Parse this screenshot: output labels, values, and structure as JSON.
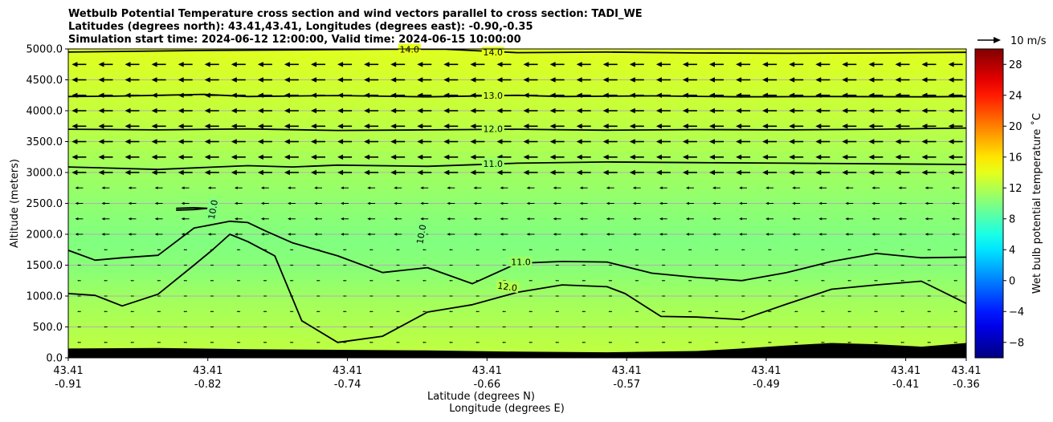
{
  "chart_data": {
    "type": "heatmap",
    "title_lines": [
      "Wetbulb Potential Temperature cross section and wind vectors parallel to cross section: TADI_WE",
      "Latitudes (degrees north): 43.41,43.41, Longitudes (degrees east): -0.90,-0.35",
      "Simulation start time: 2024-06-12 12:00:00, Valid time: 2024-06-15 10:00:00"
    ],
    "ylabel": "Altitude (meters)",
    "xlabel_lat": "Latitude (degrees N)",
    "xlabel_lon": "Longitude (degrees E)",
    "ylim": [
      0,
      5000
    ],
    "yticks": [
      "0.0",
      "500.0",
      "1000.0",
      "1500.0",
      "2000.0",
      "2500.0",
      "3000.0",
      "3500.0",
      "4000.0",
      "4500.0",
      "5000.0"
    ],
    "ytick_values": [
      0,
      500,
      1000,
      1500,
      2000,
      2500,
      3000,
      3500,
      4000,
      4500,
      5000
    ],
    "xticks_lat": [
      "43.41",
      "43.41",
      "43.41",
      "43.41",
      "43.41",
      "43.41",
      "43.41",
      "43.41"
    ],
    "xticks_lon": [
      "-0.91",
      "-0.82",
      "-0.74",
      "-0.66",
      "-0.57",
      "-0.49",
      "-0.41",
      "-0.36"
    ],
    "xtick_fraction": [
      0,
      0.1554,
      0.3109,
      0.4663,
      0.6218,
      0.7772,
      0.9326,
      1.0
    ],
    "grid": "horizontal",
    "colorbar": {
      "label": "Wet bulb potential temperature ˚C",
      "range": [
        -10,
        30
      ],
      "ticks": [
        "−8",
        "−4",
        "0",
        "4",
        "8",
        "12",
        "16",
        "20",
        "24",
        "28"
      ],
      "tick_values": [
        -8,
        -4,
        0,
        4,
        8,
        12,
        16,
        20,
        24,
        28
      ],
      "colormap": "jet"
    },
    "quiver_key": "10 m/s",
    "contour_labels": [
      {
        "text": "14.0",
        "level": 14,
        "x": 0.473,
        "alt": 4945,
        "rot": 0
      },
      {
        "text": "14.0",
        "level": 14,
        "x": 0.38,
        "alt": 4995,
        "rot": 0
      },
      {
        "text": "13.0",
        "level": 13,
        "x": 0.473,
        "alt": 4245,
        "rot": 0
      },
      {
        "text": "12.0",
        "level": 12,
        "x": 0.473,
        "alt": 3705,
        "rot": 0
      },
      {
        "text": "11.0",
        "level": 11,
        "x": 0.473,
        "alt": 3145,
        "rot": 0
      },
      {
        "text": "11.0",
        "level": 11,
        "x": 0.504,
        "alt": 1555,
        "rot": 0
      },
      {
        "text": "12.0",
        "level": 12,
        "x": 0.489,
        "alt": 1150,
        "rot": 8
      },
      {
        "text": "10.0",
        "level": 10,
        "x": 0.393,
        "alt": 2000,
        "rot": -80
      },
      {
        "text": "10.0",
        "level": 10,
        "x": 0.161,
        "alt": 2400,
        "rot": -80
      }
    ],
    "contours": [
      {
        "level": 14,
        "x": [
          0,
          0.06,
          0.15,
          0.25,
          0.35,
          0.42,
          0.5,
          0.6,
          0.7,
          0.8,
          0.9,
          1.0
        ],
        "alt": [
          4950,
          4960,
          4975,
          4985,
          4995,
          4995,
          4940,
          4950,
          4935,
          4930,
          4935,
          4945
        ]
      },
      {
        "level": 13,
        "x": [
          0,
          0.05,
          0.1,
          0.15,
          0.2,
          0.3,
          0.4,
          0.5,
          0.55,
          0.65,
          0.75,
          0.85,
          0.95,
          1.0
        ],
        "alt": [
          4230,
          4235,
          4250,
          4265,
          4230,
          4245,
          4225,
          4250,
          4230,
          4240,
          4225,
          4230,
          4225,
          4230
        ]
      },
      {
        "level": 12,
        "x": [
          0,
          0.1,
          0.2,
          0.3,
          0.4,
          0.5,
          0.6,
          0.7,
          0.8,
          0.9,
          1.0
        ],
        "alt": [
          3700,
          3690,
          3705,
          3680,
          3690,
          3700,
          3685,
          3695,
          3690,
          3700,
          3720
        ]
      },
      {
        "level": 11,
        "x": [
          0,
          0.05,
          0.1,
          0.15,
          0.2,
          0.25,
          0.3,
          0.4,
          0.5,
          0.6,
          0.7,
          0.8,
          0.9,
          1.0
        ],
        "alt": [
          3090,
          3070,
          3050,
          3080,
          3110,
          3090,
          3120,
          3100,
          3150,
          3170,
          3160,
          3150,
          3140,
          3130
        ]
      },
      {
        "level": 11,
        "x": [
          0,
          0.03,
          0.06,
          0.1,
          0.14,
          0.18,
          0.2,
          0.22,
          0.25,
          0.3,
          0.35,
          0.4,
          0.45,
          0.5,
          0.55,
          0.6,
          0.65,
          0.7,
          0.75,
          0.8,
          0.85,
          0.9,
          0.95,
          1.0
        ],
        "alt": [
          1740,
          1580,
          1620,
          1660,
          2100,
          2210,
          2190,
          2050,
          1860,
          1650,
          1380,
          1460,
          1200,
          1530,
          1560,
          1550,
          1370,
          1300,
          1250,
          1380,
          1560,
          1690,
          1620,
          1630
        ]
      },
      {
        "level": 12,
        "x": [
          0,
          0.03,
          0.06,
          0.1,
          0.14,
          0.16,
          0.18,
          0.2,
          0.23,
          0.26,
          0.3,
          0.35,
          0.4,
          0.45,
          0.5,
          0.55,
          0.6,
          0.62,
          0.66,
          0.7,
          0.75,
          0.8,
          0.85,
          0.9,
          0.95,
          1.0
        ],
        "alt": [
          1040,
          1010,
          840,
          1030,
          1500,
          1740,
          2000,
          1880,
          1650,
          600,
          250,
          350,
          740,
          860,
          1060,
          1180,
          1150,
          1040,
          670,
          660,
          620,
          870,
          1110,
          1180,
          1240,
          880
        ]
      },
      {
        "level": 10,
        "x": [
          0.12,
          0.14,
          0.155,
          0.14,
          0.12
        ],
        "alt": [
          2420,
          2430,
          2420,
          2400,
          2390
        ]
      }
    ],
    "terrain": {
      "x": [
        0,
        0.1,
        0.2,
        0.3,
        0.4,
        0.5,
        0.6,
        0.7,
        0.75,
        0.8,
        0.85,
        0.9,
        0.95,
        1.0
      ],
      "alt": [
        150,
        160,
        140,
        130,
        120,
        100,
        90,
        110,
        150,
        200,
        240,
        220,
        180,
        240
      ]
    }
  }
}
